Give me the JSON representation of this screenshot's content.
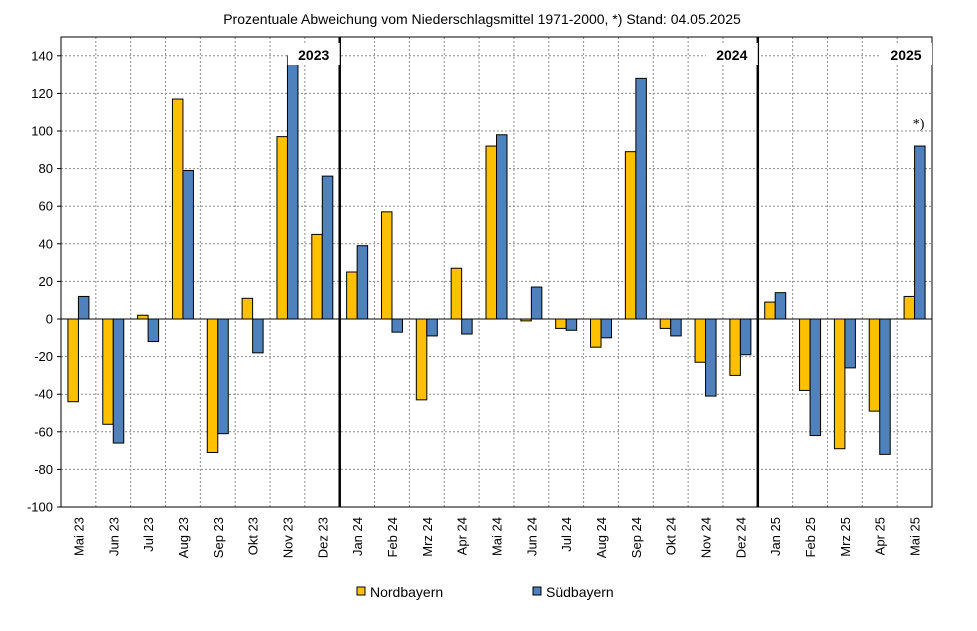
{
  "chart_data": {
    "type": "bar",
    "title": "Prozentuale Abweichung vom Niederschlagsmittel 1971-2000,  *) Stand:  04.05.2025",
    "categories": [
      "Mai 23",
      "Jun 23",
      "Jul 23",
      "Aug 23",
      "Sep 23",
      "Okt 23",
      "Nov 23",
      "Dez 23",
      "Jan 24",
      "Feb 24",
      "Mrz 24",
      "Apr 24",
      "Mai 24",
      "Jun 24",
      "Jul 24",
      "Aug 24",
      "Sep 24",
      "Okt 24",
      "Nov 24",
      "Dez 24",
      "Jan 25",
      "Feb 25",
      "Mrz 25",
      "Apr 25",
      "Mai 25"
    ],
    "series": [
      {
        "name": "Nordbayern",
        "color": "#FFC000",
        "values": [
          -44,
          -56,
          2,
          117,
          -71,
          11,
          97,
          45,
          25,
          57,
          -43,
          27,
          92,
          -1,
          -5,
          -15,
          89,
          -5,
          -23,
          -30,
          9,
          -38,
          -69,
          -49,
          12
        ]
      },
      {
        "name": "Südbayern",
        "color": "#4F81BD",
        "values": [
          12,
          -66,
          -12,
          79,
          -61,
          -18,
          140,
          76,
          39,
          -7,
          -9,
          -8,
          98,
          17,
          -6,
          -10,
          128,
          -9,
          -41,
          -19,
          14,
          -62,
          -26,
          -72,
          92
        ]
      }
    ],
    "ylim": [
      -100,
      150
    ],
    "yticks": [
      -100,
      -80,
      -60,
      -40,
      -20,
      0,
      20,
      40,
      60,
      80,
      100,
      120,
      140
    ],
    "xlabel": "",
    "ylabel": "",
    "grid": true,
    "legend": "bottom",
    "year_labels": [
      {
        "text": "2023",
        "after_index": 7
      },
      {
        "text": "2024",
        "after_index": 19
      },
      {
        "text": "2025",
        "after_index": 24
      }
    ],
    "year_separators_after": [
      7,
      19
    ],
    "annotation": {
      "text": "*)",
      "index": 24
    }
  }
}
